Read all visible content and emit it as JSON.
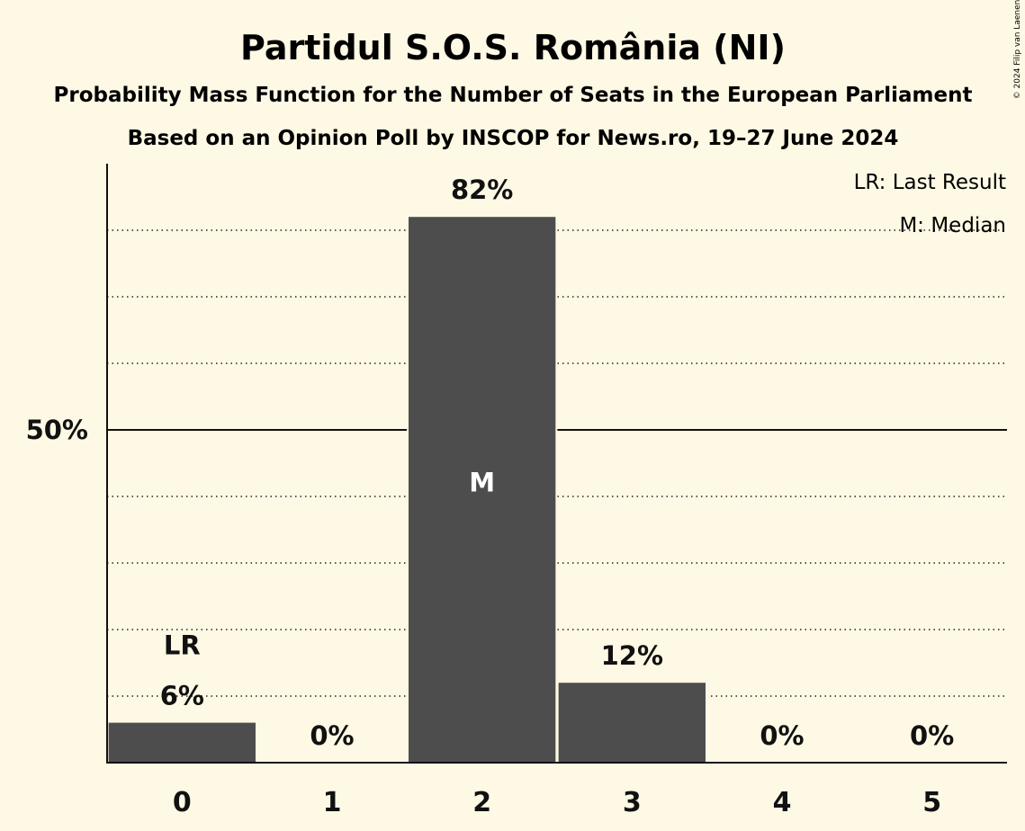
{
  "title": "Partidul S.O.S. România (NI)",
  "subtitle1": "Probability Mass Function for the Number of Seats in the European Parliament",
  "subtitle2": "Based on an Opinion Poll by INSCOP for News.ro, 19–27 June 2024",
  "copyright": "© 2024 Filip van Laenen",
  "legend": {
    "last_result": "LR: Last Result",
    "median": "M: Median"
  },
  "colors": {
    "background": "#fef9e4",
    "bar": "#4d4d4d",
    "text": "#111111",
    "median_label": "#ffffff"
  },
  "chart_data": {
    "type": "bar",
    "categories": [
      "0",
      "1",
      "2",
      "3",
      "4",
      "5"
    ],
    "values": [
      6,
      0,
      82,
      12,
      0,
      0
    ],
    "value_labels": [
      "6%",
      "0%",
      "82%",
      "12%",
      "0%",
      "0%"
    ],
    "ylim": [
      0,
      90
    ],
    "yticks": [
      {
        "value": 50,
        "label": "50%"
      }
    ],
    "gridlines": [
      10,
      20,
      30,
      40,
      60,
      70,
      80
    ],
    "solid_gridline": 50,
    "last_result_index": 0,
    "last_result_label": "LR",
    "median_index": 2,
    "median_label": "M"
  }
}
